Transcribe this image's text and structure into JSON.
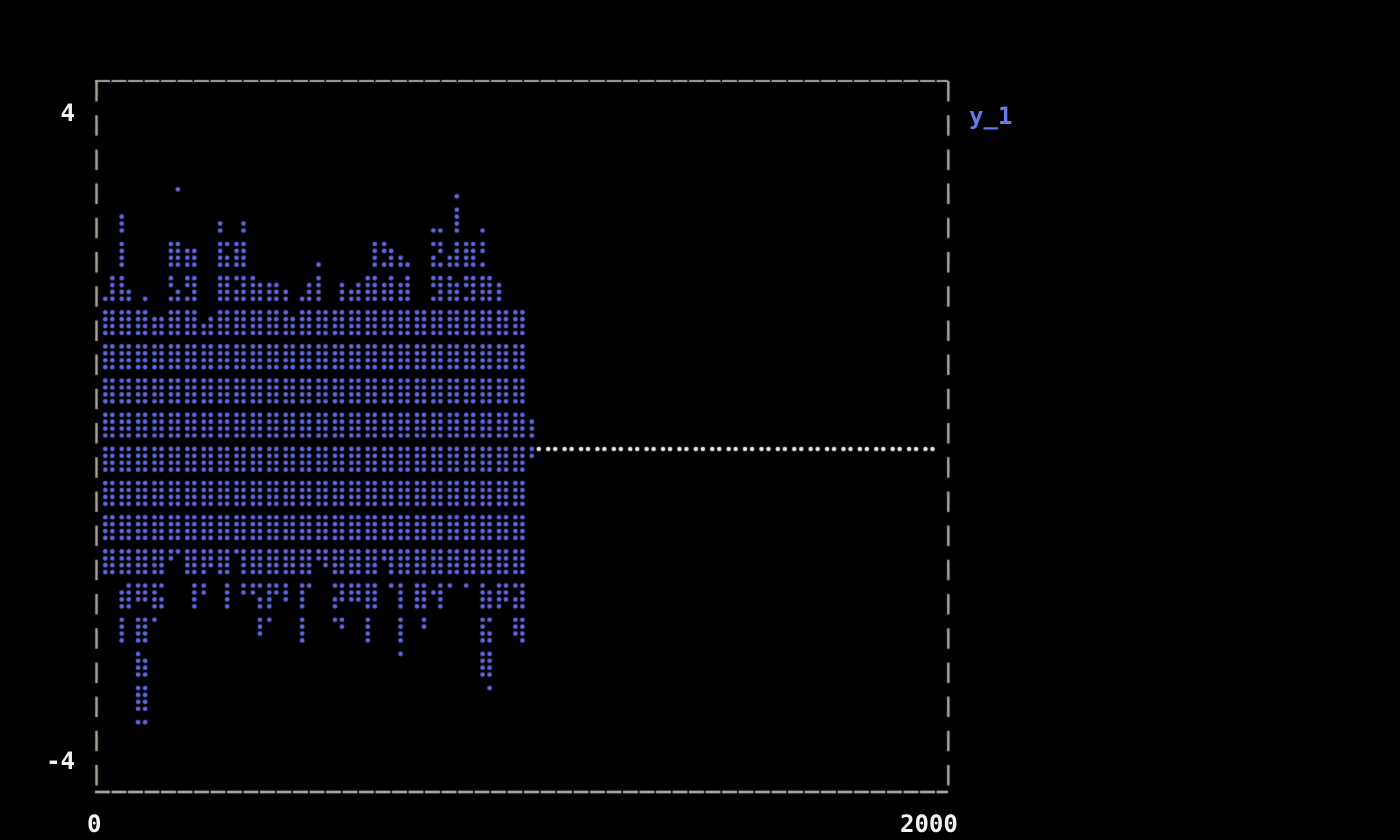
{
  "window": {
    "background": "#000000",
    "kind": "terminal plot screenshot"
  },
  "colors": {
    "background": "#000000",
    "frame": "#b4ada2",
    "frame_bottom": "#b8b8b8",
    "tick_text": "#f4f4f4",
    "series_blue": "#6468e3",
    "zero_line_white": "#f1eee8",
    "legend_text": "#667aed"
  },
  "chart_data": {
    "type": "scatter",
    "style": "terminal-braille-dots",
    "title": "",
    "xlabel": "",
    "ylabel": "",
    "xlim": [
      0,
      2000
    ],
    "ylim": [
      -4,
      4
    ],
    "grid": false,
    "x_ticks": [
      {
        "value": 0,
        "label": "0"
      },
      {
        "value": 2000,
        "label": "2000"
      }
    ],
    "y_ticks": [
      {
        "value": 4,
        "label": "4"
      },
      {
        "value": -4,
        "label": "-4"
      }
    ],
    "legend": [
      {
        "label": "y_1",
        "color": "#667aed",
        "position": "outside-top-right"
      }
    ],
    "seed": 11,
    "series": [
      {
        "name": "y_1",
        "kind": "noise-burst-scatter",
        "color": "#6468e3",
        "x_range": [
          0,
          1025
        ],
        "dense_core_y": [
          -1.6,
          1.6
        ],
        "envelope_max_y": 3.55,
        "envelope_min_y": -3.62,
        "column_extents": [
          {
            "x": 32,
            "ymin": -2.0,
            "ymax": 2.0
          },
          {
            "x": 71,
            "ymin": -2.6,
            "ymax": 2.8
          },
          {
            "x": 109,
            "ymin": -3.62,
            "ymax": 1.9
          },
          {
            "x": 148,
            "ymin": -2.55,
            "ymax": 1.8
          },
          {
            "x": 186,
            "ymin": -1.8,
            "ymax": 2.7
          },
          {
            "x": 225,
            "ymin": -2.2,
            "ymax": 2.6
          },
          {
            "x": 263,
            "ymin": -2.0,
            "ymax": 1.9
          },
          {
            "x": 302,
            "ymin": -2.2,
            "ymax": 2.8
          },
          {
            "x": 340,
            "ymin": -2.0,
            "ymax": 2.8
          },
          {
            "x": 379,
            "ymin": -2.7,
            "ymax": 2.3
          },
          {
            "x": 417,
            "ymin": -2.3,
            "ymax": 2.4
          },
          {
            "x": 456,
            "ymin": -2.0,
            "ymax": 1.9
          },
          {
            "x": 494,
            "ymin": -2.6,
            "ymax": 2.2
          },
          {
            "x": 533,
            "ymin": -2.1,
            "ymax": 2.35
          },
          {
            "x": 571,
            "ymin": -2.4,
            "ymax": 1.9
          },
          {
            "x": 610,
            "ymin": -2.2,
            "ymax": 2.2
          },
          {
            "x": 648,
            "ymin": -2.6,
            "ymax": 2.5
          },
          {
            "x": 687,
            "ymin": -2.3,
            "ymax": 2.5
          },
          {
            "x": 725,
            "ymin": -2.7,
            "ymax": 2.4
          },
          {
            "x": 764,
            "ymin": -2.5,
            "ymax": 2.0
          },
          {
            "x": 802,
            "ymin": -2.1,
            "ymax": 2.6
          },
          {
            "x": 841,
            "ymin": -2.2,
            "ymax": 3.55
          },
          {
            "x": 879,
            "ymin": -2.0,
            "ymax": 2.75
          },
          {
            "x": 918,
            "ymin": -3.15,
            "ymax": 2.6
          },
          {
            "x": 956,
            "ymin": -2.2,
            "ymax": 2.0
          },
          {
            "x": 995,
            "ymin": -2.8,
            "ymax": 1.8
          },
          {
            "x": 1020,
            "ymin": -0.25,
            "ymax": 0.2
          }
        ],
        "notable_points": [
          {
            "x": 845,
            "y": 3.55,
            "note": "tallest spike"
          },
          {
            "x": 195,
            "y": 3.05,
            "note": "isolated high dot",
            "lone": true
          },
          {
            "x": 110,
            "y": -3.6,
            "note": "deepest left tail"
          },
          {
            "x": 912,
            "y": -3.1,
            "note": "deep low run"
          }
        ]
      },
      {
        "name": "zero_tail",
        "kind": "constant-dotted-line",
        "color": "#f1eee8",
        "x_range": [
          1030,
          1965
        ],
        "y": 0
      }
    ]
  }
}
